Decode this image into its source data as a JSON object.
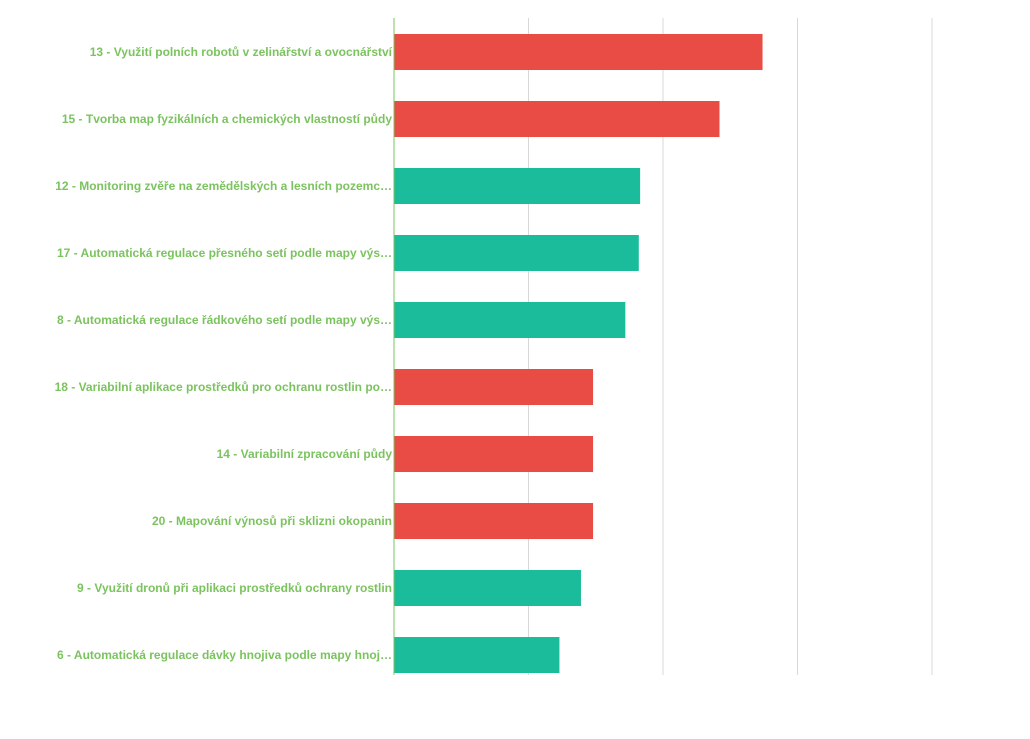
{
  "chart_data": {
    "type": "bar",
    "orientation": "horizontal",
    "title": "",
    "xlabel": "",
    "ylabel": "",
    "grid": true,
    "xlim": [
      0,
      4
    ],
    "label_color": "#7bc35f",
    "axis_color": "#7bc35f",
    "grid_color": "#d8d8d8",
    "categories": [
      "13 - Využití polních robotů v zelinářství a ovocnářství",
      "15 - Tvorba map fyzikálních a chemických vlastností půdy",
      "12 - Monitoring zvěře na zemědělských a lesních pozemc…",
      "17 - Automatická regulace přesného setí podle mapy výs…",
      "8 - Automatická regulace řádkového setí podle mapy výs…",
      "18 - Variabilní aplikace prostředků pro ochranu rostlin po…",
      "14 - Variabilní zpracování půdy",
      "20 - Mapování výnosů při sklizni okopanin",
      "9 - Využití dronů při aplikaci prostředků ochrany rostlin",
      "6 - Automatická regulace dávky hnojiva podle mapy hnoj…"
    ],
    "values": [
      2.74,
      2.42,
      1.83,
      1.82,
      1.72,
      1.48,
      1.48,
      1.48,
      1.39,
      1.23
    ],
    "colors": [
      "#e84c44",
      "#e84c44",
      "#1bbc9b",
      "#1bbc9b",
      "#1bbc9b",
      "#e84c44",
      "#e84c44",
      "#e84c44",
      "#1bbc9b",
      "#1bbc9b"
    ]
  }
}
